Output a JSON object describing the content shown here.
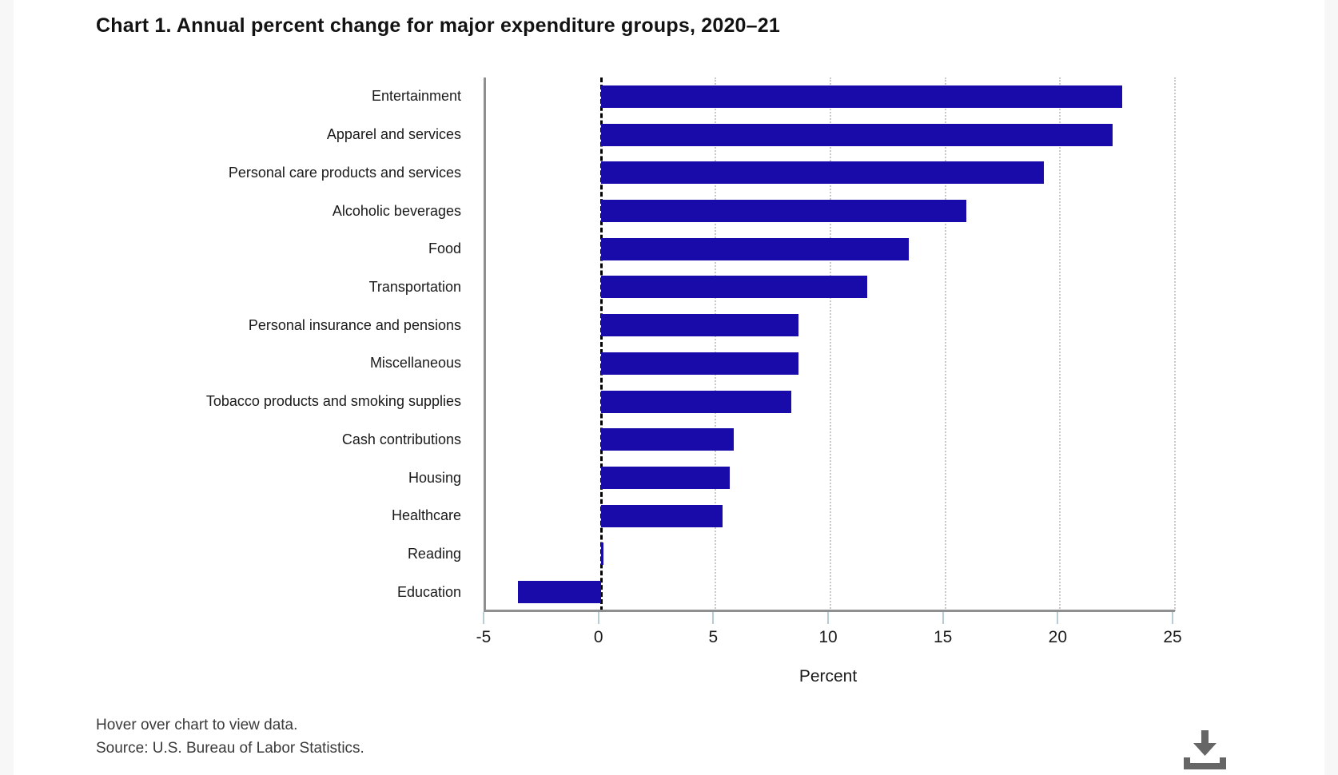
{
  "page": {
    "notes": {
      "hover": "Hover over chart to view data.",
      "source": "Source: U.S. Bureau of Labor Statistics."
    }
  },
  "colors": {
    "bar": "#190aaa",
    "axis_spine": "#8f8f8f",
    "gridline": "#c9c9c9",
    "zero_line": "#000000",
    "tick_mark": "#b6cbd6",
    "download_icon": "#666666"
  },
  "chart_data": {
    "type": "bar",
    "orientation": "horizontal",
    "title": "Chart 1. Annual percent change for major expenditure groups, 2020–21",
    "xlabel": "Percent",
    "xlim": [
      -5,
      25
    ],
    "xticks": [
      -5,
      0,
      5,
      10,
      15,
      20,
      25
    ],
    "grid": "vertical dotted gridlines at positive ticks, dashed line at zero",
    "legend": "none",
    "categories": [
      "Entertainment",
      "Apparel and services",
      "Personal care products and services",
      "Alcoholic beverages",
      "Food",
      "Transportation",
      "Personal insurance and pensions",
      "Miscellaneous",
      "Tobacco products and smoking supplies",
      "Cash contributions",
      "Housing",
      "Healthcare",
      "Reading",
      "Education"
    ],
    "values": [
      22.7,
      22.3,
      19.3,
      15.9,
      13.4,
      11.6,
      8.6,
      8.6,
      8.3,
      5.8,
      5.6,
      5.3,
      0.1,
      -3.6
    ],
    "units": "percent"
  }
}
